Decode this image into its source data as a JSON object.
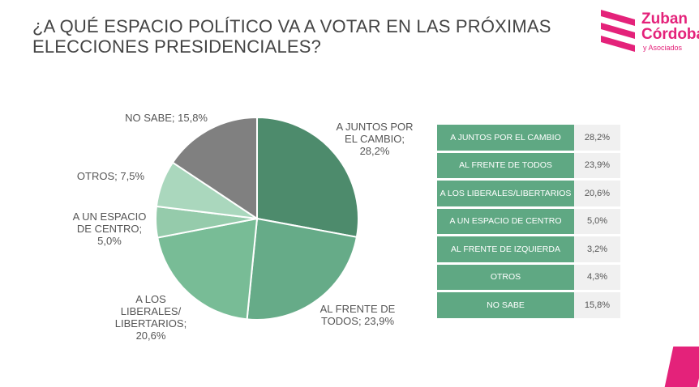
{
  "title": "¿A QUÉ ESPACIO POLÍTICO VA A VOTAR EN LAS PRÓXIMAS ELECCIONES PRESIDENCIALES?",
  "logo": {
    "line1": "Zuban",
    "line2": "Córdoba",
    "line3": "y Asociados"
  },
  "colors": {
    "accent": "#e4227a",
    "table_green": "#5fa883"
  },
  "chart_data": [
    {
      "type": "pie",
      "title": "",
      "slices": [
        {
          "label": "A JUNTOS POR EL CAMBIO; 28,2%",
          "lines": [
            "A JUNTOS POR",
            "EL CAMBIO;",
            "28,2%"
          ],
          "value": 28.2,
          "color": "#4d8b6c"
        },
        {
          "label": "AL FRENTE DE TODOS; 23,9%",
          "lines": [
            "AL FRENTE DE",
            "TODOS; 23,9%"
          ],
          "value": 23.9,
          "color": "#66ab88"
        },
        {
          "label": "A LOS LIBERALES/ LIBERTARIOS; 20,6%",
          "lines": [
            "A LOS",
            "LIBERALES/",
            "LIBERTARIOS;",
            "20,6%"
          ],
          "value": 20.6,
          "color": "#78bc96"
        },
        {
          "label": "A UN ESPACIO DE CENTRO; 5,0%",
          "lines": [
            "A UN ESPACIO",
            "DE CENTRO;",
            "5,0%"
          ],
          "value": 5.0,
          "color": "#95cbab"
        },
        {
          "label": "OTROS; 7,5%",
          "lines": [
            "OTROS; 7,5%"
          ],
          "value": 7.5,
          "color": "#aad7bd"
        },
        {
          "label": "NO SABE; 15,8%",
          "lines": [
            "NO SABE; 15,8%"
          ],
          "value": 15.8,
          "color": "#808080"
        }
      ]
    },
    {
      "type": "table",
      "rows": [
        {
          "label": "A JUNTOS POR EL CAMBIO",
          "value": "28,2%"
        },
        {
          "label": "AL FRENTE DE TODOS",
          "value": "23,9%"
        },
        {
          "label": "A LOS LIBERALES/LIBERTARIOS",
          "value": "20,6%"
        },
        {
          "label": "A UN ESPACIO DE CENTRO",
          "value": "5,0%"
        },
        {
          "label": "AL FRENTE DE IZQUIERDA",
          "value": "3,2%"
        },
        {
          "label": "OTROS",
          "value": "4,3%"
        },
        {
          "label": "NO SABE",
          "value": "15,8%"
        }
      ]
    }
  ]
}
